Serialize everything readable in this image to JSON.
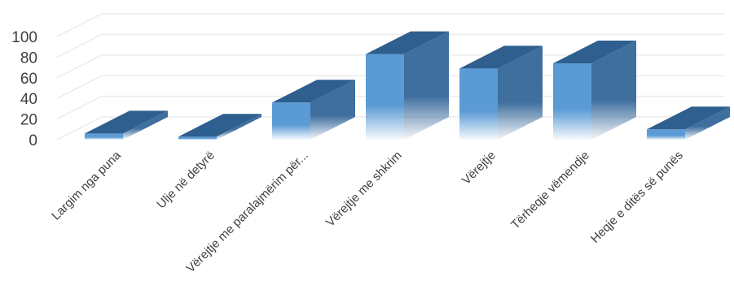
{
  "chart_data": {
    "type": "bar",
    "style": "3d-column",
    "categories": [
      "Largim nga puna",
      "Ulje në detyrë",
      "Vërejtje me paralajmërim për...",
      "Vërejtje me shkrim",
      "Vërejtje",
      "Tërheqje vëmendje",
      "Heqje e ditës së punës"
    ],
    "values": [
      6,
      3,
      36,
      83,
      69,
      74,
      10
    ],
    "ylim": [
      0,
      100
    ],
    "yticks": [
      "0",
      "20",
      "40",
      "60",
      "80",
      "100"
    ],
    "grid": true,
    "colors": {
      "front": "#5b9bd5",
      "side": "#3f6f9f",
      "top": "#2e5f8e"
    }
  }
}
